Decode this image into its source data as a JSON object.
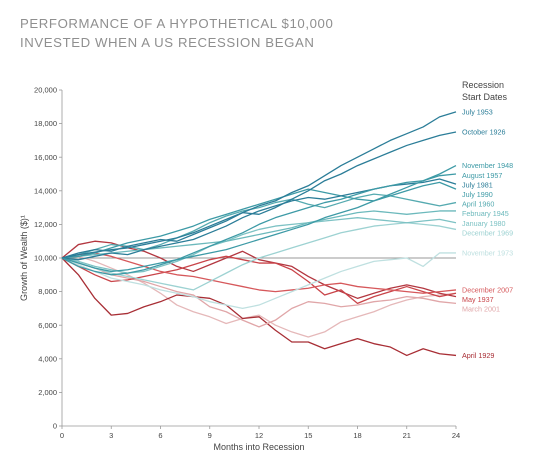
{
  "chart_data": {
    "type": "line",
    "title_lines": [
      "PERFORMANCE OF A HYPOTHETICAL $10,000",
      "INVESTED WHEN A US RECESSION BEGAN"
    ],
    "xlabel": "Months into Recession",
    "ylabel": "Growth of Wealth ($)¹",
    "xlim": [
      0,
      24
    ],
    "ylim": [
      0,
      20000
    ],
    "xticks": [
      0,
      3,
      6,
      9,
      12,
      15,
      18,
      21,
      24
    ],
    "yticks": [
      0,
      2000,
      4000,
      6000,
      8000,
      10000,
      12000,
      14000,
      16000,
      18000,
      20000
    ],
    "ytick_labels": [
      "0",
      "2,000",
      "4,000",
      "6,000",
      "8,000",
      "10,000",
      "12,000",
      "14,000",
      "16,000",
      "18,000",
      "20,000"
    ],
    "baseline": 10000,
    "legend_title": [
      "Recession",
      "Start Dates"
    ],
    "series": [
      {
        "name": "July 1953",
        "color": "#2b7d98",
        "values": [
          10000,
          10200,
          10350,
          10500,
          10600,
          10800,
          11000,
          11200,
          11500,
          11900,
          12300,
          12700,
          13100,
          13400,
          13900,
          14300,
          14900,
          15500,
          16000,
          16500,
          17000,
          17400,
          17800,
          18400,
          18700
        ]
      },
      {
        "name": "October 1926",
        "color": "#2b7d98",
        "values": [
          10000,
          10300,
          10500,
          10400,
          10700,
          10900,
          11100,
          11000,
          11400,
          11800,
          12200,
          12700,
          12600,
          13000,
          13500,
          14000,
          14600,
          15000,
          15500,
          15900,
          16300,
          16700,
          17000,
          17300,
          17500
        ]
      },
      {
        "name": "November 1948",
        "color": "#3d9aa6",
        "values": [
          10000,
          9700,
          9400,
          9200,
          9300,
          9500,
          9700,
          9900,
          10100,
          10300,
          10500,
          10800,
          11100,
          11400,
          11700,
          12000,
          12400,
          12700,
          13000,
          13400,
          13800,
          14200,
          14600,
          15000,
          15500
        ]
      },
      {
        "name": "August 1957",
        "color": "#3d9aa6",
        "values": [
          10000,
          9500,
          9200,
          9000,
          9100,
          9300,
          9600,
          9900,
          10300,
          10700,
          11100,
          11500,
          12000,
          12400,
          12700,
          13000,
          13300,
          13500,
          13800,
          14100,
          14300,
          14500,
          14600,
          14900,
          15000
        ]
      },
      {
        "name": "July 1981",
        "color": "#2b7d98",
        "values": [
          10000,
          9900,
          10100,
          10300,
          10200,
          10500,
          10700,
          10900,
          11100,
          11500,
          11900,
          12400,
          12800,
          13100,
          13400,
          13600,
          13500,
          13700,
          13900,
          14100,
          14300,
          14400,
          14500,
          14700,
          14400
        ]
      },
      {
        "name": "July 1990",
        "color": "#3d9aa6",
        "values": [
          10000,
          10100,
          10300,
          10600,
          10900,
          11100,
          11300,
          11600,
          11900,
          12300,
          12600,
          12900,
          13200,
          13500,
          13800,
          14100,
          13900,
          13700,
          13500,
          13400,
          13700,
          14000,
          14300,
          14500,
          14100
        ]
      },
      {
        "name": "April 1960",
        "color": "#55aab0",
        "values": [
          10000,
          10200,
          10500,
          10800,
          10700,
          10500,
          10800,
          11200,
          11600,
          12100,
          12500,
          12800,
          13000,
          13300,
          13500,
          13200,
          13000,
          13300,
          13600,
          13800,
          13700,
          13500,
          13300,
          13100,
          13300
        ]
      },
      {
        "name": "February 1945",
        "color": "#6cb9bc",
        "values": [
          10000,
          10100,
          10200,
          10300,
          10400,
          10500,
          10600,
          10700,
          10800,
          10900,
          11000,
          11200,
          11400,
          11600,
          11800,
          12100,
          12300,
          12500,
          12700,
          12800,
          12700,
          12600,
          12700,
          12800,
          12800
        ]
      },
      {
        "name": "January 1980",
        "color": "#7dc2c4",
        "values": [
          10000,
          9800,
          9500,
          9300,
          9100,
          9200,
          9500,
          9800,
          10200,
          10700,
          11000,
          11400,
          11700,
          11900,
          12000,
          12100,
          12200,
          12300,
          12400,
          12300,
          12200,
          12100,
          12200,
          12300,
          12100
        ]
      },
      {
        "name": "December 1969",
        "color": "#9dd2d2",
        "values": [
          10000,
          9700,
          9400,
          9100,
          8900,
          8700,
          8500,
          8300,
          8100,
          8600,
          9100,
          9600,
          10000,
          10300,
          10600,
          10900,
          11200,
          11500,
          11700,
          11900,
          12000,
          12100,
          12000,
          11900,
          11700
        ]
      },
      {
        "name": "November 1973",
        "color": "#bfe0e0",
        "values": [
          10000,
          9600,
          9200,
          8800,
          8600,
          8400,
          8100,
          7900,
          7700,
          7400,
          7200,
          7000,
          7200,
          7600,
          8000,
          8400,
          8800,
          9200,
          9500,
          9800,
          9900,
          10000,
          9500,
          10300,
          10300
        ]
      },
      {
        "name": "December 2007",
        "color": "#d6585b",
        "values": [
          10000,
          10200,
          10300,
          10100,
          9800,
          9500,
          9200,
          9000,
          8900,
          8700,
          8500,
          8300,
          8100,
          8000,
          8100,
          8200,
          8400,
          8500,
          8300,
          8200,
          8100,
          8000,
          7900,
          8000,
          8100
        ]
      },
      {
        "name": "May 1937",
        "color": "#c94449",
        "values": [
          10000,
          9500,
          9000,
          8600,
          8700,
          8900,
          9100,
          9300,
          9600,
          9900,
          10100,
          9900,
          9700,
          9700,
          9300,
          8600,
          7800,
          8100,
          7300,
          7700,
          8000,
          8300,
          8000,
          7700,
          7900
        ]
      },
      {
        "name": "March 2001",
        "color": "#e0a6a8",
        "values": [
          10000,
          9700,
          9400,
          9000,
          8800,
          8600,
          8300,
          8000,
          7800,
          7100,
          6800,
          6300,
          5900,
          6300,
          7000,
          7400,
          7300,
          7100,
          7200,
          7400,
          7500,
          7700,
          7600,
          7400,
          7300
        ]
      },
      {
        "name": "April 1929",
        "color": "#a82e35",
        "values": [
          10000,
          9000,
          7600,
          6600,
          6700,
          7100,
          7400,
          7800,
          7700,
          7600,
          7200,
          6400,
          6500,
          5700,
          5000,
          5000,
          4600,
          4900,
          5200,
          4900,
          4700,
          4200,
          4600,
          4300,
          4200
        ]
      }
    ],
    "extra_lines": [
      {
        "color": "#e5b8b9",
        "values": [
          10000,
          10100,
          9800,
          9400,
          9000,
          8500,
          7900,
          7200,
          6800,
          6500,
          6100,
          6400,
          6600,
          6000,
          5600,
          5300,
          5600,
          6200,
          6500,
          6800,
          7200,
          7500,
          7700,
          7800,
          7900
        ]
      },
      {
        "color": "#b33740",
        "values": [
          10000,
          10800,
          11000,
          10900,
          10600,
          10400,
          10000,
          9500,
          9200,
          9600,
          10000,
          10400,
          9900,
          9700,
          9500,
          8900,
          8400,
          8000,
          7600,
          7900,
          8200,
          8400,
          8200,
          7900,
          7700
        ]
      }
    ]
  }
}
